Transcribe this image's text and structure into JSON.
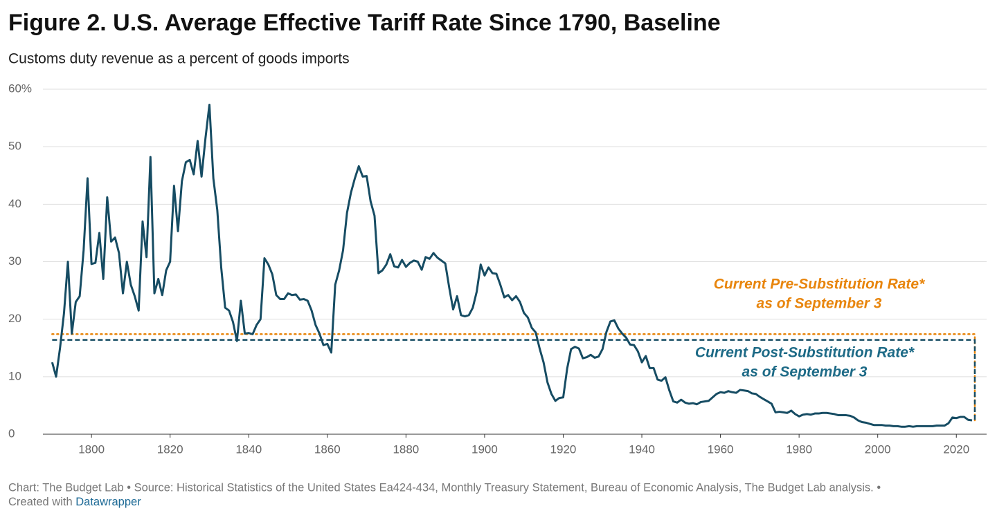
{
  "chart_data": {
    "type": "line",
    "title": "Figure 2. U.S. Average Effective Tariff Rate Since 1790, Baseline",
    "subtitle": "Customs duty revenue as a percent of goods imports",
    "source": "Chart: The Budget Lab • Source: Historical Statistics of the United States Ea424-434, Monthly Treasury Statement, Bureau of Economic Analysis, The Budget Lab analysis. •",
    "credit": "Created with",
    "credit_link": "Datawrapper",
    "color": "#164c63",
    "grid": true,
    "xlim": [
      1788,
      2027
    ],
    "xticks": [
      1800,
      1820,
      1840,
      1860,
      1880,
      1900,
      1920,
      1940,
      1960,
      1980,
      2000,
      2020
    ],
    "ylim": [
      0,
      60
    ],
    "yticks": [
      0,
      10,
      20,
      30,
      40,
      50,
      {
        "value": 60,
        "label": "60%"
      }
    ],
    "reference_lines": [
      {
        "value": 17.4,
        "color": "#e8850c",
        "style": "dotted",
        "label": [
          "Current Pre-Substitution Rate*",
          "as of September 3"
        ]
      },
      {
        "value": 16.4,
        "color": "#164c63",
        "style": "dashed",
        "label": [
          "Current Post-Substitution Rate*",
          "as of September 3"
        ],
        "label_color": "#1d6a86"
      }
    ],
    "x": [
      1790,
      1791,
      1792,
      1793,
      1794,
      1795,
      1796,
      1797,
      1798,
      1799,
      1800,
      1801,
      1802,
      1803,
      1804,
      1805,
      1806,
      1807,
      1808,
      1809,
      1810,
      1811,
      1812,
      1813,
      1814,
      1815,
      1816,
      1817,
      1818,
      1819,
      1820,
      1821,
      1822,
      1823,
      1824,
      1825,
      1826,
      1827,
      1828,
      1829,
      1830,
      1831,
      1832,
      1833,
      1834,
      1835,
      1836,
      1837,
      1838,
      1839,
      1840,
      1841,
      1842,
      1843,
      1844,
      1845,
      1846,
      1847,
      1848,
      1849,
      1850,
      1851,
      1852,
      1853,
      1854,
      1855,
      1856,
      1857,
      1858,
      1859,
      1860,
      1861,
      1862,
      1863,
      1864,
      1865,
      1866,
      1867,
      1868,
      1869,
      1870,
      1871,
      1872,
      1873,
      1874,
      1875,
      1876,
      1877,
      1878,
      1879,
      1880,
      1881,
      1882,
      1883,
      1884,
      1885,
      1886,
      1887,
      1888,
      1889,
      1890,
      1891,
      1892,
      1893,
      1894,
      1895,
      1896,
      1897,
      1898,
      1899,
      1900,
      1901,
      1902,
      1903,
      1904,
      1905,
      1906,
      1907,
      1908,
      1909,
      1910,
      1911,
      1912,
      1913,
      1914,
      1915,
      1916,
      1917,
      1918,
      1919,
      1920,
      1921,
      1922,
      1923,
      1924,
      1925,
      1926,
      1927,
      1928,
      1929,
      1930,
      1931,
      1932,
      1933,
      1934,
      1935,
      1936,
      1937,
      1938,
      1939,
      1940,
      1941,
      1942,
      1943,
      1944,
      1945,
      1946,
      1947,
      1948,
      1949,
      1950,
      1951,
      1952,
      1953,
      1954,
      1955,
      1956,
      1957,
      1958,
      1959,
      1960,
      1961,
      1962,
      1963,
      1964,
      1965,
      1966,
      1967,
      1968,
      1969,
      1970,
      1971,
      1972,
      1973,
      1974,
      1975,
      1976,
      1977,
      1978,
      1979,
      1980,
      1981,
      1982,
      1983,
      1984,
      1985,
      1986,
      1987,
      1988,
      1989,
      1990,
      1991,
      1992,
      1993,
      1994,
      1995,
      1996,
      1997,
      1998,
      1999,
      2000,
      2001,
      2002,
      2003,
      2004,
      2005,
      2006,
      2007,
      2008,
      2009,
      2010,
      2011,
      2012,
      2013,
      2014,
      2015,
      2016,
      2017,
      2018,
      2019,
      2020,
      2021,
      2022,
      2023,
      2024
    ],
    "values": [
      12.5,
      10,
      15,
      21,
      30,
      17.5,
      23,
      24,
      32,
      44.5,
      29.6,
      29.8,
      35,
      27,
      41.2,
      33.5,
      34.2,
      31.5,
      24.5,
      30,
      26,
      24,
      21.5,
      37,
      30.8,
      48.2,
      24.5,
      27,
      24.2,
      28.5,
      30,
      43.2,
      35.3,
      44,
      47.3,
      47.7,
      45.2,
      51,
      44.8,
      51.5,
      57.3,
      44.5,
      39,
      29,
      22,
      21.5,
      19.5,
      16.2,
      23.2,
      17.5,
      17.6,
      17.4,
      19,
      20,
      30.6,
      29.5,
      27.8,
      24.2,
      23.5,
      23.5,
      24.5,
      24.2,
      24.3,
      23.4,
      23.5,
      23.2,
      21.5,
      19,
      17.5,
      15.5,
      15.7,
      14.2,
      26,
      28.5,
      32,
      38.5,
      42,
      44.5,
      46.6,
      44.8,
      44.9,
      40.5,
      38,
      28,
      28.5,
      29.5,
      31.3,
      29.2,
      29,
      30.3,
      29.1,
      29.8,
      30.2,
      30,
      28.6,
      30.8,
      30.5,
      31.5,
      30.7,
      30.2,
      29.7,
      25.5,
      21.7,
      24,
      20.7,
      20.5,
      20.7,
      22,
      24.8,
      29.5,
      27.6,
      29,
      28,
      27.9,
      26,
      23.8,
      24.2,
      23.3,
      24,
      23,
      21.1,
      20.3,
      18.5,
      17.7,
      14.9,
      12.5,
      9,
      7,
      5.8,
      6.3,
      6.4,
      11.4,
      14.8,
      15.2,
      14.9,
      13.2,
      13.4,
      13.8,
      13.3,
      13.5,
      14.8,
      17.8,
      19.6,
      19.8,
      18.4,
      17.5,
      16.8,
      15.6,
      15.5,
      14.4,
      12.5,
      13.6,
      11.5,
      11.5,
      9.5,
      9.3,
      9.9,
      7.6,
      5.7,
      5.5,
      6,
      5.5,
      5.3,
      5.4,
      5.2,
      5.6,
      5.7,
      5.8,
      6.4,
      7,
      7.3,
      7.2,
      7.5,
      7.3,
      7.2,
      7.7,
      7.6,
      7.5,
      7.1,
      7,
      6.5,
      6.1,
      5.7,
      5.3,
      3.8,
      3.9,
      3.8,
      3.7,
      4.1,
      3.5,
      3.1,
      3.4,
      3.5,
      3.4,
      3.6,
      3.6,
      3.7,
      3.7,
      3.6,
      3.5,
      3.3,
      3.3,
      3.3,
      3.2,
      2.9,
      2.4,
      2.1,
      2,
      1.8,
      1.6,
      1.6,
      1.6,
      1.5,
      1.5,
      1.4,
      1.4,
      1.3,
      1.3,
      1.4,
      1.3,
      1.4,
      1.4,
      1.4,
      1.4,
      1.4,
      1.5,
      1.5,
      1.5,
      1.9,
      2.9,
      2.8,
      3,
      3,
      2.5,
      2.4
    ]
  }
}
